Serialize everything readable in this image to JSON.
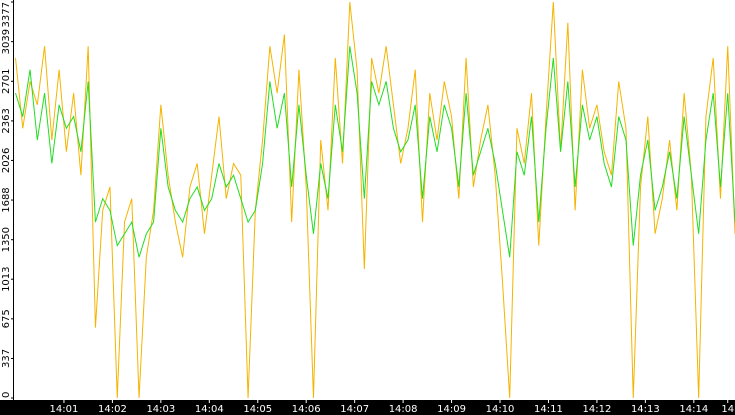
{
  "chart_data": {
    "type": "line",
    "x": [
      0,
      0.15,
      0.3,
      0.45,
      0.6,
      0.75,
      0.9,
      1.05,
      1.2,
      1.35,
      1.5,
      1.65,
      1.8,
      1.95,
      2.1,
      2.25,
      2.4,
      2.55,
      2.7,
      2.85,
      3,
      3.15,
      3.3,
      3.45,
      3.6,
      3.75,
      3.9,
      4.05,
      4.2,
      4.35,
      4.5,
      4.65,
      4.8,
      4.95,
      5.1,
      5.25,
      5.4,
      5.55,
      5.7,
      5.85,
      6,
      6.15,
      6.3,
      6.45,
      6.6,
      6.75,
      6.9,
      7.05,
      7.2,
      7.35,
      7.5,
      7.65,
      7.8,
      7.95,
      8.1,
      8.25,
      8.4,
      8.55,
      8.7,
      8.85,
      9,
      9.15,
      9.3,
      9.45,
      9.6,
      9.75,
      9.9,
      10.05,
      10.2,
      10.35,
      10.5,
      10.65,
      10.8,
      10.95,
      11.1,
      11.25,
      11.4,
      11.55,
      11.7,
      11.85,
      12,
      12.15,
      12.3,
      12.45,
      12.6,
      12.75,
      12.9,
      13.05,
      13.2,
      13.35,
      13.5,
      13.65,
      13.8,
      13.95,
      14.1,
      14.25,
      14.4,
      14.55,
      14.7,
      14.85
    ],
    "series": [
      {
        "color": "#f5b400",
        "values": [
          2900,
          2300,
          2700,
          2500,
          3000,
          2200,
          2800,
          2100,
          2600,
          1900,
          3000,
          600,
          1600,
          1800,
          0,
          1500,
          1700,
          0,
          1200,
          1600,
          2500,
          1900,
          1500,
          1200,
          1800,
          2000,
          1400,
          1900,
          2400,
          1700,
          2000,
          1900,
          0,
          1600,
          2200,
          3000,
          2600,
          3100,
          1500,
          2800,
          1800,
          0,
          2200,
          1600,
          2900,
          2000,
          3377,
          2800,
          1100,
          2900,
          2600,
          3000,
          2500,
          2000,
          2300,
          2800,
          1500,
          2600,
          2200,
          2700,
          2400,
          1700,
          2900,
          1800,
          2200,
          2500,
          1900,
          1000,
          0,
          2300,
          2000,
          2600,
          1300,
          2400,
          3377,
          2100,
          3200,
          1600,
          2800,
          2300,
          2500,
          2100,
          1900,
          2700,
          2300,
          0,
          1800,
          2400,
          1400,
          1700,
          2200,
          1600,
          2600,
          1900,
          0,
          2400,
          2900,
          1700,
          3000,
          1400
        ]
      },
      {
        "color": "#22dd22",
        "values": [
          2600,
          2400,
          2800,
          2200,
          2600,
          2000,
          2500,
          2300,
          2400,
          2100,
          2700,
          1500,
          1700,
          1600,
          1300,
          1400,
          1500,
          1200,
          1400,
          1500,
          2300,
          1800,
          1600,
          1500,
          1700,
          1800,
          1600,
          1700,
          2000,
          1800,
          1900,
          1700,
          1500,
          1600,
          2000,
          2700,
          2300,
          2600,
          1800,
          2500,
          1900,
          1400,
          2000,
          1700,
          2500,
          2100,
          3000,
          2600,
          1700,
          2700,
          2500,
          2700,
          2300,
          2100,
          2200,
          2500,
          1700,
          2400,
          2100,
          2500,
          2300,
          1800,
          2600,
          1900,
          2100,
          2300,
          2000,
          1600,
          1200,
          2100,
          1900,
          2400,
          1500,
          2300,
          2900,
          2100,
          2700,
          1800,
          2500,
          2200,
          2400,
          2000,
          1800,
          2400,
          2200,
          1300,
          1900,
          2200,
          1600,
          1800,
          2100,
          1700,
          2400,
          1900,
          1400,
          2200,
          2600,
          1800,
          2600,
          1500
        ]
      }
    ],
    "xlim": [
      0,
      14.85
    ],
    "xticks": [
      {
        "value": 1,
        "label": "14:01"
      },
      {
        "value": 2,
        "label": "14:02"
      },
      {
        "value": 3,
        "label": "14:03"
      },
      {
        "value": 4,
        "label": "14:04"
      },
      {
        "value": 5,
        "label": "14:05"
      },
      {
        "value": 6,
        "label": "14:06"
      },
      {
        "value": 7,
        "label": "14:07"
      },
      {
        "value": 8,
        "label": "14:08"
      },
      {
        "value": 9,
        "label": "14:09"
      },
      {
        "value": 10,
        "label": "14:10"
      },
      {
        "value": 11,
        "label": "14:11"
      },
      {
        "value": 12,
        "label": "14:12"
      },
      {
        "value": 13,
        "label": "14:13"
      },
      {
        "value": 14,
        "label": "14:14"
      },
      {
        "value": 14.7,
        "label": "14"
      }
    ],
    "ylim": [
      0,
      3377
    ],
    "yticks": [
      0,
      337,
      675,
      1013,
      1350,
      1688,
      2026,
      2363,
      2701,
      3039,
      3377
    ]
  }
}
